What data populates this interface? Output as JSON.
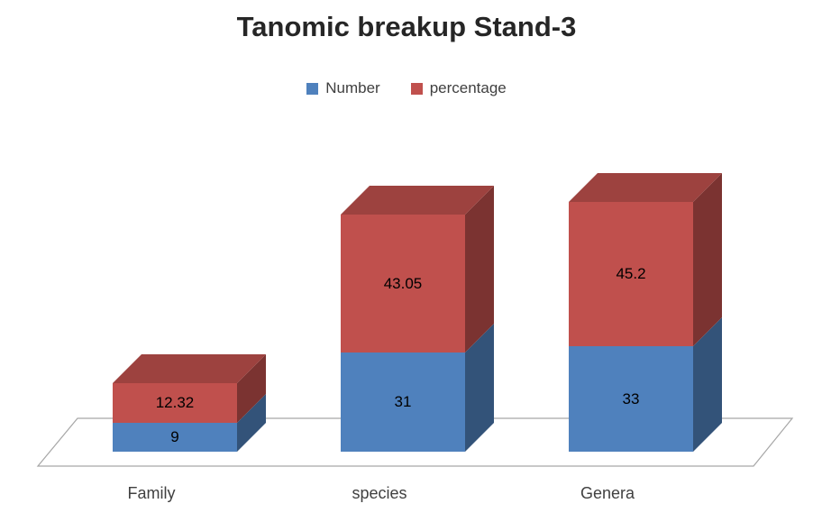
{
  "chart_data": {
    "type": "bar",
    "subtype": "stacked-3d",
    "title": "Tanomic breakup Stand-3",
    "categories": [
      "Family",
      "species",
      "Genera"
    ],
    "series": [
      {
        "name": "Number",
        "color": "#4F81BD",
        "values": [
          9,
          31,
          33
        ]
      },
      {
        "name": "percentage",
        "color": "#C0504D",
        "values": [
          12.32,
          43.05,
          45.2
        ]
      }
    ],
    "data_labels": {
      "Number": [
        "9",
        "31",
        "33"
      ],
      "percentage": [
        "12.32",
        "43.05",
        "45.2"
      ]
    },
    "legend_position": "top",
    "grid": false,
    "axes_visible": false,
    "style_colors": {
      "title_text": "#262626",
      "label_text": "#000000",
      "axis_text": "#404040",
      "floor_stroke": "#a6a6a6"
    }
  }
}
